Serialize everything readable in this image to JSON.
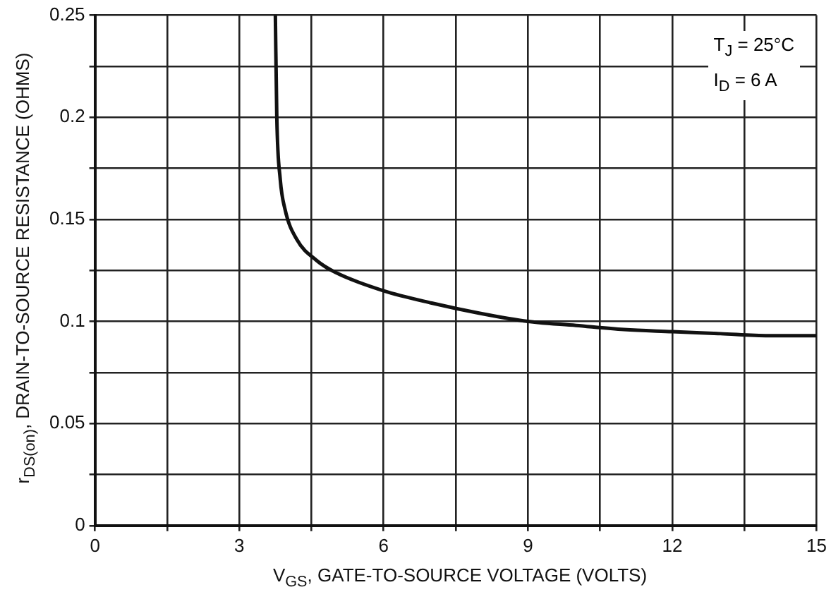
{
  "chart_data": {
    "type": "line",
    "xlabel": "V$_{GS}$, GATE-TO-SOURCE VOLTAGE (VOLTS)",
    "ylabel": "r$_{DS(on)}$, DRAIN-TO-SOURCE RESISTANCE (OHMS)",
    "annotations": [
      "T$_{J}$ = 25°C",
      "I$_{D}$ = 6 A"
    ],
    "series": [
      {
        "color": "#111111",
        "x": [
          3.75,
          3.78,
          3.85,
          3.95,
          4.2,
          4.6,
          5,
          6,
          7,
          8,
          9,
          10,
          11,
          12,
          13,
          14,
          15
        ],
        "values": [
          0.25,
          0.2,
          0.17,
          0.155,
          0.14,
          0.13,
          0.124,
          0.115,
          0.109,
          0.104,
          0.1,
          0.098,
          0.096,
          0.095,
          0.094,
          0.093,
          0.093
        ]
      }
    ],
    "xlim": [
      0,
      15
    ],
    "xticks": [
      0,
      {
        "value": 1.5,
        "label": null
      },
      3,
      {
        "value": 4.5,
        "label": null
      },
      6,
      {
        "value": 7.5,
        "label": null
      },
      9,
      {
        "value": 10.5,
        "label": null
      },
      12,
      {
        "value": 13.5,
        "label": null
      },
      15
    ],
    "ylim": [
      0,
      0.25
    ],
    "yticks": [
      0,
      {
        "value": 0.025,
        "label": null
      },
      0.05,
      {
        "value": 0.075,
        "label": null
      },
      0.1,
      {
        "value": 0.125,
        "label": null
      },
      0.15,
      {
        "value": 0.175,
        "label": null
      },
      0.2,
      {
        "value": 0.225,
        "label": null
      },
      0.25
    ],
    "grid": true,
    "legend": false,
    "marker": "none",
    "line_style": "solid"
  }
}
